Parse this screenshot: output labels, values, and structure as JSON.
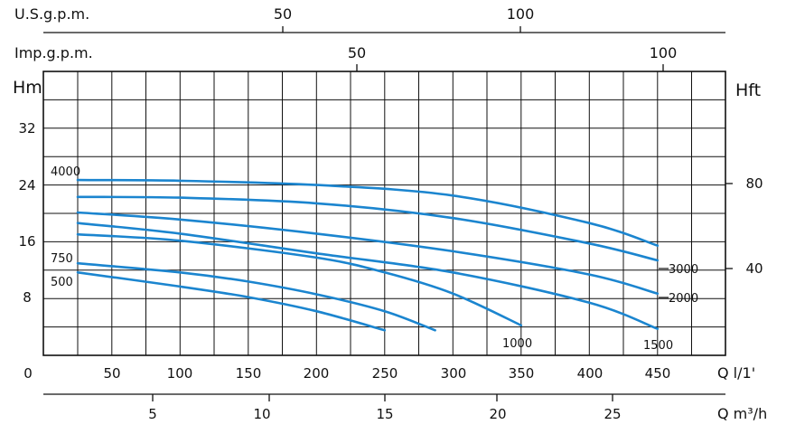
{
  "chart_data": {
    "type": "line",
    "title": "",
    "x_axis": {
      "label": "Q l/1'",
      "lim": [
        0,
        500
      ],
      "ticks": [
        "0",
        "50",
        "100",
        "150",
        "200",
        "250",
        "300",
        "350",
        "400",
        "450"
      ]
    },
    "x2_axis": {
      "label": "Q m³/h",
      "ticks": [
        "5",
        "10",
        "15",
        "20",
        "25"
      ]
    },
    "top_axis_usgpm": {
      "label": "U.S.g.p.m.",
      "ticks": [
        "50",
        "100"
      ]
    },
    "top_axis_impgpm": {
      "label": "Imp.g.p.m.",
      "ticks": [
        "50",
        "100"
      ]
    },
    "y_axis": {
      "label": "Hm",
      "lim": [
        0,
        40
      ],
      "ticks": [
        "8",
        "16",
        "24",
        "32"
      ]
    },
    "y2_axis": {
      "label": "Hft",
      "ticks": [
        "40",
        "80"
      ]
    },
    "grid": true,
    "series": [
      {
        "name": "500",
        "x": [
          25,
          100,
          150,
          200,
          250
        ],
        "y": [
          11.5,
          9.5,
          8.0,
          6.0,
          3.3
        ]
      },
      {
        "name": "750",
        "x": [
          25,
          100,
          150,
          200,
          250,
          287
        ],
        "y": [
          12.8,
          11.5,
          10.2,
          8.4,
          6.0,
          3.3
        ]
      },
      {
        "name": "1000",
        "x": [
          25,
          100,
          200,
          250,
          300,
          350
        ],
        "y": [
          16.9,
          16.0,
          13.6,
          11.5,
          8.5,
          4.0
        ]
      },
      {
        "name": "1500",
        "x": [
          25,
          100,
          200,
          300,
          400,
          450
        ],
        "y": [
          18.5,
          17.0,
          14.2,
          11.5,
          7.2,
          3.5
        ]
      },
      {
        "name": "2000",
        "x": [
          25,
          100,
          200,
          300,
          400,
          450
        ],
        "y": [
          20.0,
          19.0,
          17.0,
          14.5,
          11.2,
          8.5
        ]
      },
      {
        "name": "3000",
        "x": [
          25,
          100,
          200,
          300,
          400,
          450
        ],
        "y": [
          22.2,
          22.1,
          21.3,
          19.2,
          15.6,
          13.2
        ]
      },
      {
        "name": "4000",
        "x": [
          25,
          100,
          200,
          300,
          400,
          450
        ],
        "y": [
          24.6,
          24.5,
          23.9,
          22.4,
          18.5,
          15.3
        ]
      }
    ],
    "curve_labels": [
      "4000",
      "750",
      "500",
      "3000",
      "2000",
      "1000",
      "1500"
    ],
    "line_color": "#1b85cf",
    "background": "#ffffff",
    "grid_color": "#111111"
  }
}
